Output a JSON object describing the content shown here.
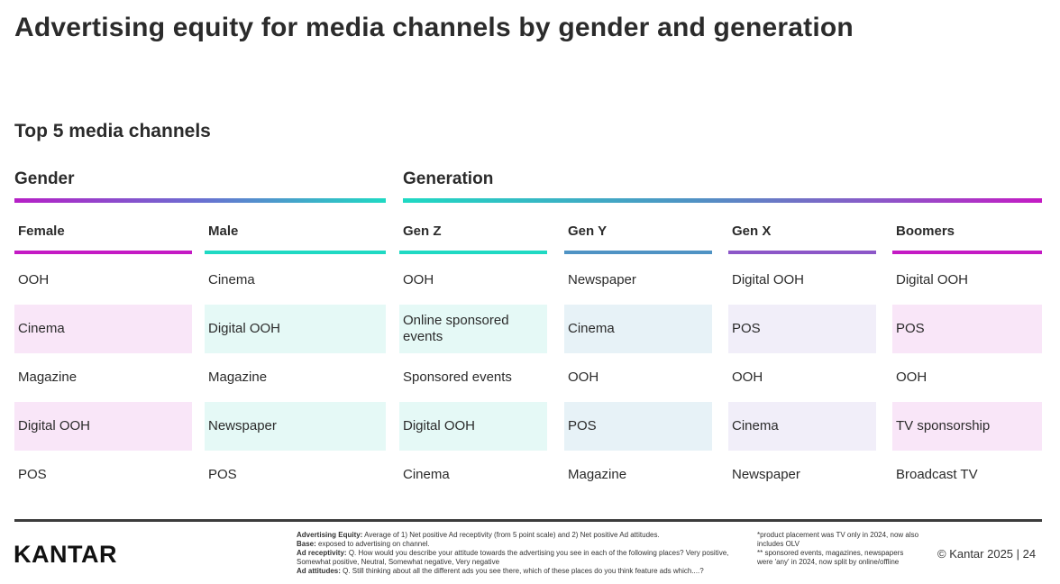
{
  "title": "Advertising equity for media channels by gender and generation",
  "subtitle": "Top 5 media channels",
  "groups": {
    "gender": "Gender",
    "generation": "Generation"
  },
  "columns": [
    {
      "header": "Female",
      "accent": "#c41ac4",
      "shade": "#f9e6f8",
      "items": [
        "OOH",
        "Cinema",
        "Magazine",
        "Digital OOH",
        "POS"
      ]
    },
    {
      "header": "Male",
      "accent": "#1fd9c3",
      "shade": "#e5f9f6",
      "items": [
        "Cinema",
        "Digital OOH",
        "Magazine",
        "Newspaper",
        "POS"
      ]
    },
    {
      "header": "Gen Z",
      "accent": "#1fd9c3",
      "shade": "#e5f9f6",
      "items": [
        "OOH",
        "Online sponsored events",
        "Sponsored events",
        "Digital OOH",
        "Cinema"
      ]
    },
    {
      "header": "Gen Y",
      "accent": "#4f93c4",
      "shade": "#e7f2f7",
      "items": [
        "Newspaper",
        "Cinema",
        "OOH",
        "POS",
        "Magazine"
      ]
    },
    {
      "header": "Gen X",
      "accent": "#8c57c8",
      "shade": "#f1eef9",
      "items": [
        "Digital OOH",
        "POS",
        "OOH",
        "Cinema",
        "Newspaper"
      ]
    },
    {
      "header": "Boomers",
      "accent": "#c41ac4",
      "shade": "#f9e6f8",
      "items": [
        "Digital OOH",
        "POS",
        "OOH",
        "TV sponsorship",
        "Broadcast TV"
      ]
    }
  ],
  "footer": {
    "logo": "KANTAR",
    "equity_label": "Advertising Equity:",
    "equity_text": "Average of 1) Net positive Ad receptivity (from 5 point scale) and 2) Net positive Ad attitudes.",
    "base_label": "Base:",
    "base_text": "exposed to advertising on channel.",
    "receptivity_label": "Ad receptivity:",
    "receptivity_text": "Q. How would you describe your attitude towards the advertising you see in each of the following places? Very positive, Somewhat positive, Neutral, Somewhat negative, Very negative",
    "attitudes_label": "Ad attitudes:",
    "attitudes_text": "Q. Still thinking about all the different ads you see there, which of these places do you think feature ads which....?",
    "note1": "*product placement was TV only in 2024, now also includes OLV",
    "note2": "** sponsored events, magazines, newspapers were 'any' in 2024, now split by online/offline",
    "copyright": "© Kantar 2025 | 24"
  }
}
